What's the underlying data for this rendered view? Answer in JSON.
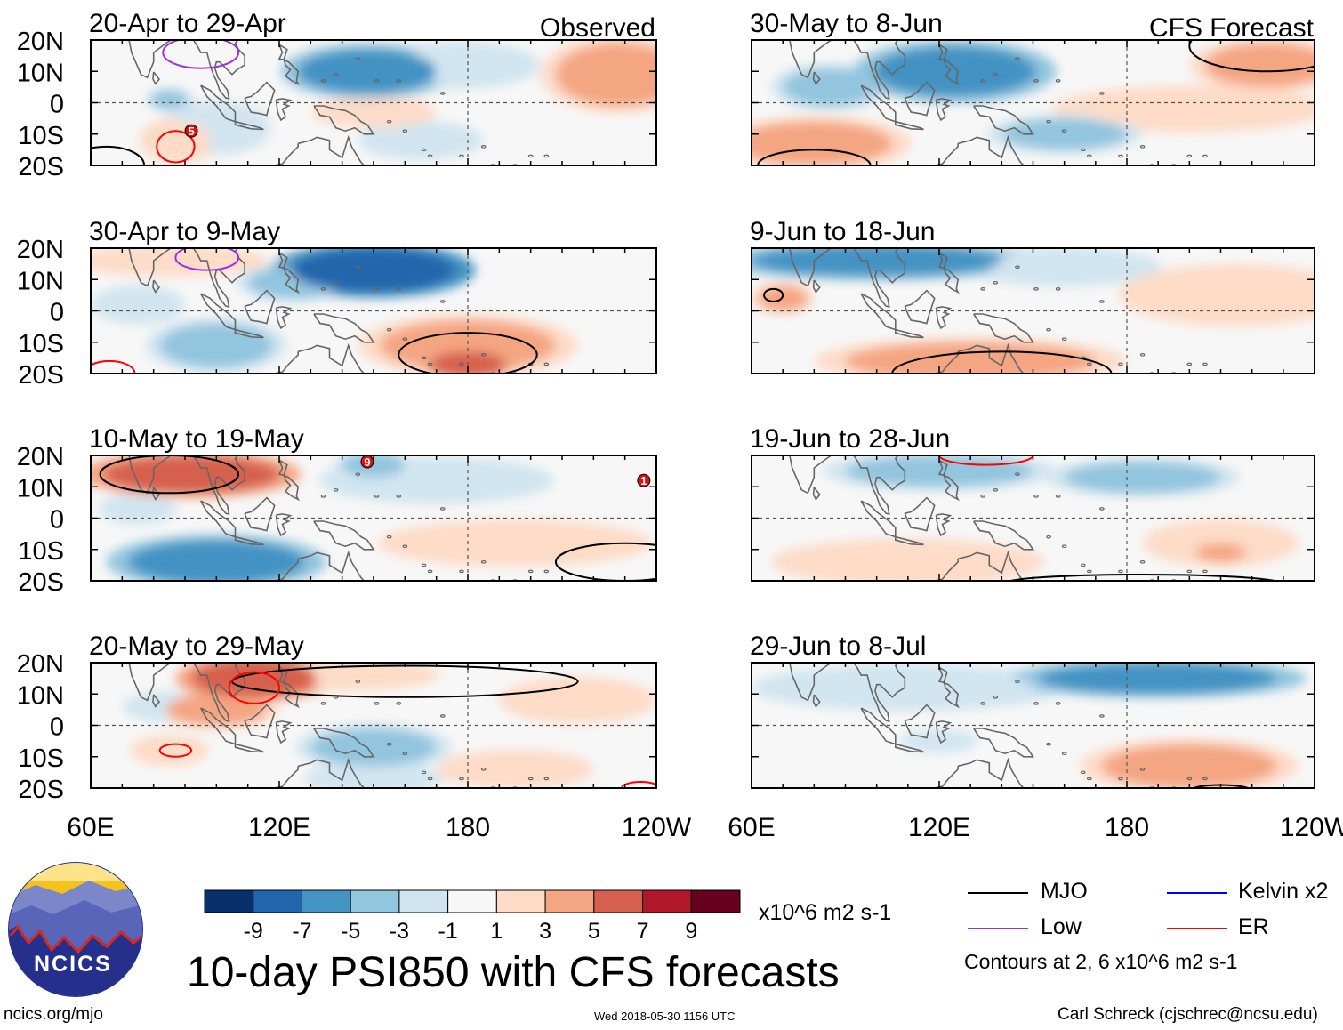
{
  "chart_data": {
    "type": "heatmap",
    "title": "10-day PSI850 with CFS forecasts",
    "variable": "PSI850 anomaly",
    "units": "x10^6 m2 s-1",
    "column_headers": {
      "left": "Observed",
      "right": "CFS Forecast"
    },
    "x_tick_labels": [
      "60E",
      "120E",
      "180",
      "120W"
    ],
    "x_ticks_deg": [
      60,
      120,
      180,
      240
    ],
    "xlim_deg": [
      60,
      240
    ],
    "y_tick_labels": [
      "20N",
      "10N",
      "0",
      "10S",
      "20S"
    ],
    "y_ticks_deg": [
      20,
      10,
      0,
      -10,
      -20
    ],
    "ylim_deg": [
      -20,
      20
    ],
    "panels": [
      {
        "column": "left",
        "row": 0,
        "title": "20-Apr to 29-Apr",
        "anomalies": [
          {
            "lon": 148,
            "lat": 10,
            "rx": 22,
            "ry": 7,
            "value": -6
          },
          {
            "lon": 178,
            "lat": 12,
            "rx": 20,
            "ry": 6,
            "value": -2
          },
          {
            "lon": 85,
            "lat": 1,
            "rx": 6,
            "ry": 3,
            "value": -3
          },
          {
            "lon": 100,
            "lat": -8,
            "rx": 14,
            "ry": 7,
            "value": -2
          },
          {
            "lon": 165,
            "lat": -12,
            "rx": 16,
            "ry": 5,
            "value": -2
          },
          {
            "lon": 228,
            "lat": 9,
            "rx": 20,
            "ry": 10,
            "value": 3
          },
          {
            "lon": 150,
            "lat": -3,
            "rx": 16,
            "ry": 4,
            "value": 2
          },
          {
            "lon": 88,
            "lat": -12,
            "rx": 10,
            "ry": 6,
            "value": 2
          }
        ],
        "contours": [
          {
            "type": "Low",
            "lon": 95,
            "lat": 16,
            "rx": 12,
            "ry": 5
          },
          {
            "type": "ER",
            "lon": 87,
            "lat": -14,
            "rx": 6,
            "ry": 5
          },
          {
            "type": "MJO",
            "lon": 65,
            "lat": -20,
            "rx": 12,
            "ry": 6
          }
        ],
        "markers": [
          {
            "lon": 92,
            "lat": -9,
            "label": "5"
          }
        ]
      },
      {
        "column": "left",
        "row": 1,
        "title": "30-Apr to 9-May",
        "anomalies": [
          {
            "lon": 150,
            "lat": 13,
            "rx": 26,
            "ry": 7,
            "value": -7
          },
          {
            "lon": 125,
            "lat": 9,
            "rx": 15,
            "ry": 5,
            "value": -3
          },
          {
            "lon": 100,
            "lat": -11,
            "rx": 18,
            "ry": 7,
            "value": -3
          },
          {
            "lon": 75,
            "lat": 2,
            "rx": 12,
            "ry": 5,
            "value": -2
          },
          {
            "lon": 180,
            "lat": -11,
            "rx": 28,
            "ry": 8,
            "value": 3
          },
          {
            "lon": 180,
            "lat": -17,
            "rx": 12,
            "ry": 4,
            "value": 5
          },
          {
            "lon": 85,
            "lat": 16,
            "rx": 25,
            "ry": 4,
            "value": 2
          }
        ],
        "contours": [
          {
            "type": "Low",
            "lon": 97,
            "lat": 17,
            "rx": 10,
            "ry": 4
          },
          {
            "type": "ER",
            "lon": 66,
            "lat": -20,
            "rx": 8,
            "ry": 4
          },
          {
            "type": "MJO",
            "lon": 180,
            "lat": -14,
            "rx": 22,
            "ry": 7
          }
        ],
        "markers": []
      },
      {
        "column": "left",
        "row": 2,
        "title": "10-May to 19-May",
        "anomalies": [
          {
            "lon": 92,
            "lat": 14,
            "rx": 28,
            "ry": 6,
            "value": 5
          },
          {
            "lon": 100,
            "lat": -14,
            "rx": 28,
            "ry": 7,
            "value": -6
          },
          {
            "lon": 150,
            "lat": 17,
            "rx": 10,
            "ry": 4,
            "value": -4
          },
          {
            "lon": 170,
            "lat": 12,
            "rx": 30,
            "ry": 6,
            "value": -2
          },
          {
            "lon": 195,
            "lat": -8,
            "rx": 35,
            "ry": 6,
            "value": 2
          },
          {
            "lon": 75,
            "lat": 3,
            "rx": 10,
            "ry": 4,
            "value": -2
          }
        ],
        "contours": [
          {
            "type": "MJO",
            "lon": 85,
            "lat": 14,
            "rx": 22,
            "ry": 6
          },
          {
            "type": "MJO",
            "lon": 230,
            "lat": -14,
            "rx": 22,
            "ry": 6
          }
        ],
        "markers": [
          {
            "lon": 148,
            "lat": 18,
            "label": "9"
          },
          {
            "lon": 236,
            "lat": 12,
            "label": "1"
          }
        ]
      },
      {
        "column": "left",
        "row": 3,
        "title": "20-May to 29-May",
        "anomalies": [
          {
            "lon": 112,
            "lat": 15,
            "rx": 20,
            "ry": 6,
            "value": 6
          },
          {
            "lon": 140,
            "lat": 16,
            "rx": 25,
            "ry": 4,
            "value": 2
          },
          {
            "lon": 100,
            "lat": 5,
            "rx": 16,
            "ry": 5,
            "value": 3
          },
          {
            "lon": 150,
            "lat": -7,
            "rx": 20,
            "ry": 6,
            "value": -3
          },
          {
            "lon": 150,
            "lat": -17,
            "rx": 18,
            "ry": 4,
            "value": -2
          },
          {
            "lon": 85,
            "lat": 6,
            "rx": 12,
            "ry": 4,
            "value": -2
          },
          {
            "lon": 215,
            "lat": 8,
            "rx": 20,
            "ry": 6,
            "value": 2
          },
          {
            "lon": 195,
            "lat": -14,
            "rx": 20,
            "ry": 5,
            "value": 2
          },
          {
            "lon": 85,
            "lat": -8,
            "rx": 10,
            "ry": 4,
            "value": 2
          }
        ],
        "contours": [
          {
            "type": "MJO",
            "lon": 160,
            "lat": 14,
            "rx": 55,
            "ry": 5
          },
          {
            "type": "ER",
            "lon": 112,
            "lat": 12,
            "rx": 8,
            "ry": 5
          },
          {
            "type": "ER",
            "lon": 87,
            "lat": -8,
            "rx": 5,
            "ry": 2
          },
          {
            "type": "ER",
            "lon": 235,
            "lat": -20,
            "rx": 6,
            "ry": 2
          }
        ],
        "markers": []
      },
      {
        "column": "right",
        "row": 0,
        "title": "30-May to 8-Jun",
        "anomalies": [
          {
            "lon": 125,
            "lat": 10,
            "rx": 26,
            "ry": 8,
            "value": -6
          },
          {
            "lon": 160,
            "lat": -10,
            "rx": 20,
            "ry": 5,
            "value": -4
          },
          {
            "lon": 85,
            "lat": 5,
            "rx": 15,
            "ry": 6,
            "value": -3
          },
          {
            "lon": 80,
            "lat": -13,
            "rx": 25,
            "ry": 7,
            "value": 3
          },
          {
            "lon": 225,
            "lat": 12,
            "rx": 20,
            "ry": 7,
            "value": 3
          },
          {
            "lon": 200,
            "lat": -2,
            "rx": 35,
            "ry": 6,
            "value": 2
          }
        ],
        "contours": [
          {
            "type": "MJO",
            "lon": 225,
            "lat": 18,
            "rx": 25,
            "ry": 8
          },
          {
            "type": "MJO",
            "lon": 80,
            "lat": -20,
            "rx": 18,
            "ry": 5
          }
        ],
        "markers": []
      },
      {
        "column": "right",
        "row": 1,
        "title": "9-Jun to 18-Jun",
        "anomalies": [
          {
            "lon": 100,
            "lat": 16,
            "rx": 40,
            "ry": 5,
            "value": -5
          },
          {
            "lon": 160,
            "lat": 14,
            "rx": 25,
            "ry": 5,
            "value": -2
          },
          {
            "lon": 130,
            "lat": -16,
            "rx": 40,
            "ry": 6,
            "value": 3
          },
          {
            "lon": 215,
            "lat": 5,
            "rx": 30,
            "ry": 8,
            "value": 2
          },
          {
            "lon": 70,
            "lat": 4,
            "rx": 8,
            "ry": 4,
            "value": 3
          }
        ],
        "contours": [
          {
            "type": "MJO",
            "lon": 140,
            "lat": -20,
            "rx": 35,
            "ry": 7
          },
          {
            "type": "MJO",
            "lon": 67,
            "lat": 5,
            "rx": 3,
            "ry": 2
          }
        ],
        "markers": []
      },
      {
        "column": "right",
        "row": 2,
        "title": "19-Jun to 28-Jun",
        "anomalies": [
          {
            "lon": 120,
            "lat": 15,
            "rx": 30,
            "ry": 5,
            "value": -4
          },
          {
            "lon": 185,
            "lat": 13,
            "rx": 25,
            "ry": 5,
            "value": -4
          },
          {
            "lon": 110,
            "lat": -14,
            "rx": 35,
            "ry": 6,
            "value": 2
          },
          {
            "lon": 210,
            "lat": -8,
            "rx": 20,
            "ry": 6,
            "value": 2
          },
          {
            "lon": 210,
            "lat": -11,
            "rx": 8,
            "ry": 3,
            "value": 3
          }
        ],
        "contours": [
          {
            "type": "ER",
            "lon": 135,
            "lat": 20,
            "rx": 15,
            "ry": 3
          },
          {
            "type": "MJO",
            "lon": 185,
            "lat": -21,
            "rx": 45,
            "ry": 3
          }
        ],
        "markers": []
      },
      {
        "column": "right",
        "row": 3,
        "title": "29-Jun to 8-Jul",
        "anomalies": [
          {
            "lon": 190,
            "lat": 15,
            "rx": 38,
            "ry": 5,
            "value": -5
          },
          {
            "lon": 110,
            "lat": 12,
            "rx": 40,
            "ry": 6,
            "value": -2
          },
          {
            "lon": 200,
            "lat": -13,
            "rx": 28,
            "ry": 7,
            "value": 4
          },
          {
            "lon": 120,
            "lat": -5,
            "rx": 10,
            "ry": 3,
            "value": -2
          }
        ],
        "contours": [
          {
            "type": "MJO",
            "lon": 210,
            "lat": -21,
            "rx": 10,
            "ry": 2
          }
        ],
        "markers": []
      }
    ],
    "colorbar": {
      "ticks": [
        "-9",
        "-7",
        "-5",
        "-3",
        "-1",
        "1",
        "3",
        "5",
        "7",
        "9"
      ],
      "colors": [
        "#08306b",
        "#2166ac",
        "#4393c3",
        "#92c5de",
        "#d1e5f0",
        "#f7f7f7",
        "#fddbc7",
        "#f4a582",
        "#d6604d",
        "#b2182b",
        "#67001f"
      ],
      "units_label": "x10^6 m2 s-1"
    },
    "contour_legend": [
      {
        "label": "MJO",
        "color": "#000000"
      },
      {
        "label": "Kelvin x2",
        "color": "#0000ff"
      },
      {
        "label": "Low",
        "color": "#9b30e0"
      },
      {
        "label": "ER",
        "color": "#ff0000"
      }
    ],
    "contour_note": "Contours at 2, 6 x10^6 m2 s-1"
  },
  "logo": {
    "text": "NCICS"
  },
  "footer": {
    "url": "ncics.org/mjo",
    "timestamp": "Wed 2018-05-30 1156 UTC",
    "credit": "Carl Schreck (cjschrec@ncsu.edu)"
  }
}
